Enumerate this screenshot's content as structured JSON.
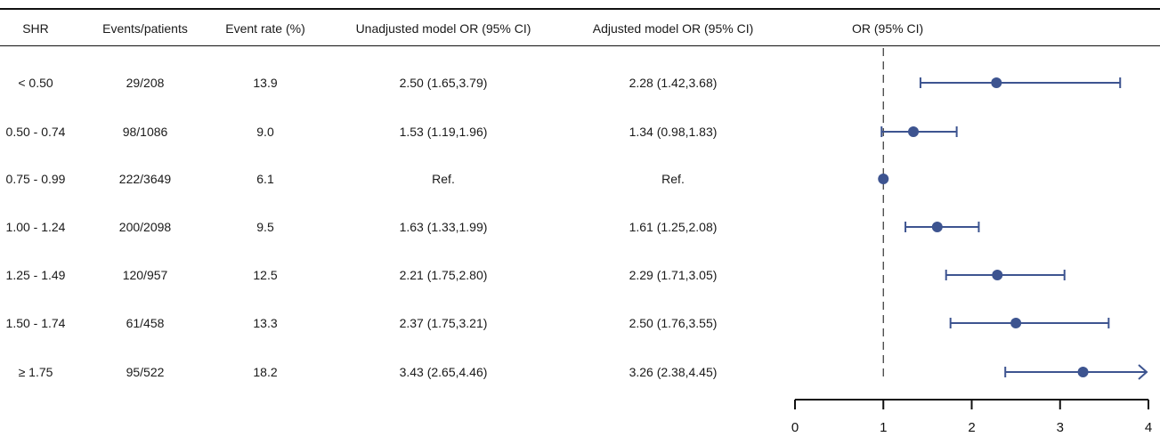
{
  "table": {
    "headers": [
      "SHR",
      "Events/patients",
      "Event rate (%)",
      "Unadjusted model OR (95% CI)",
      "Adjusted model OR (95% CI)",
      "OR (95% CI)"
    ],
    "rows": [
      {
        "shr": "< 0.50",
        "events": "29/208",
        "rate": "13.9",
        "unadj": "2.50 (1.65,3.79)",
        "adj": "2.28 (1.42,3.68)"
      },
      {
        "shr": "0.50 - 0.74",
        "events": "98/1086",
        "rate": "9.0",
        "unadj": "1.53 (1.19,1.96)",
        "adj": "1.34 (0.98,1.83)"
      },
      {
        "shr": "0.75 - 0.99",
        "events": "222/3649",
        "rate": "6.1",
        "unadj": "Ref.",
        "adj": "Ref."
      },
      {
        "shr": "1.00 - 1.24",
        "events": "200/2098",
        "rate": "9.5",
        "unadj": "1.63 (1.33,1.99)",
        "adj": "1.61 (1.25,2.08)"
      },
      {
        "shr": "1.25 - 1.49",
        "events": "120/957",
        "rate": "12.5",
        "unadj": "2.21 (1.75,2.80)",
        "adj": "2.29 (1.71,3.05)"
      },
      {
        "shr": "1.50 - 1.74",
        "events": "61/458",
        "rate": "13.3",
        "unadj": "2.37 (1.75,3.21)",
        "adj": "2.50 (1.76,3.55)"
      },
      {
        "shr": "≥ 1.75",
        "events": "95/522",
        "rate": "18.2",
        "unadj": "3.43 (2.65,4.46)",
        "adj": "3.26 (2.38,4.45)"
      }
    ]
  },
  "chart_data": {
    "type": "forest",
    "title": "",
    "xlabel": "",
    "ylabel": "",
    "xlim": [
      0,
      4
    ],
    "x_ticks": [
      "0",
      "1",
      "2",
      "3",
      "4"
    ],
    "reference_line": 1,
    "categories": [
      "< 0.50",
      "0.50 - 0.74",
      "0.75 - 0.99",
      "1.00 - 1.24",
      "1.25 - 1.49",
      "1.50 - 1.74",
      "≥ 1.75"
    ],
    "estimates": [
      2.28,
      1.34,
      1.0,
      1.61,
      2.29,
      2.5,
      3.26
    ],
    "lower": [
      1.42,
      0.98,
      1.0,
      1.25,
      1.71,
      1.76,
      2.38
    ],
    "upper": [
      3.68,
      1.83,
      1.0,
      2.08,
      3.05,
      3.55,
      4.45
    ],
    "truncated_upper": [
      false,
      false,
      false,
      false,
      false,
      false,
      true
    ]
  },
  "colors": {
    "marker": "#3d5490",
    "axis": "#111111",
    "ref_line": "#333333"
  }
}
